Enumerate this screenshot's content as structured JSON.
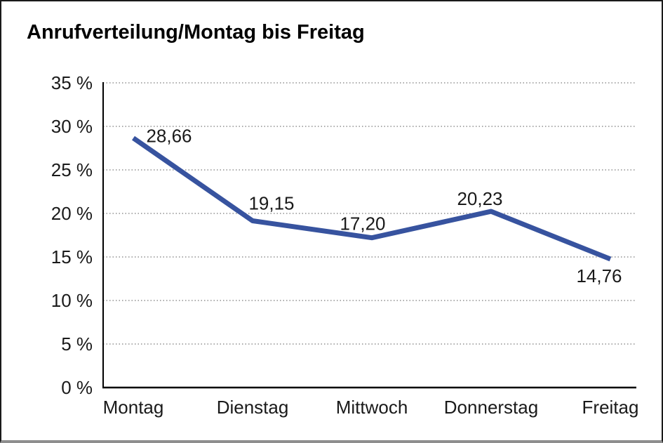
{
  "chart": {
    "title": "Anrufverteilung/Montag bis Freitag"
  },
  "chart_data": {
    "type": "line",
    "title": "Anrufverteilung/Montag bis Freitag",
    "categories": [
      "Montag",
      "Dienstag",
      "Mittwoch",
      "Donnerstag",
      "Freitag"
    ],
    "values": [
      28.66,
      19.15,
      17.2,
      20.23,
      14.76
    ],
    "value_labels": [
      "28,66",
      "19,15",
      "17,20",
      "20,23",
      "14,76"
    ],
    "unit": "%",
    "y_ticks": [
      0,
      5,
      10,
      15,
      20,
      25,
      30,
      35
    ],
    "y_tick_labels": [
      "0 %",
      "5 %",
      "10 %",
      "15 %",
      "20 %",
      "25 %",
      "30 %",
      "35 %"
    ],
    "ylim": [
      0,
      35
    ],
    "xlabel": "",
    "ylabel": "",
    "grid": "horizontal-dotted",
    "legend": "none",
    "colors": {
      "line": "#37539F",
      "axis": "#000000",
      "grid": "#7a7a7a",
      "text": "#1a1a1a",
      "background": "#ffffff"
    }
  }
}
